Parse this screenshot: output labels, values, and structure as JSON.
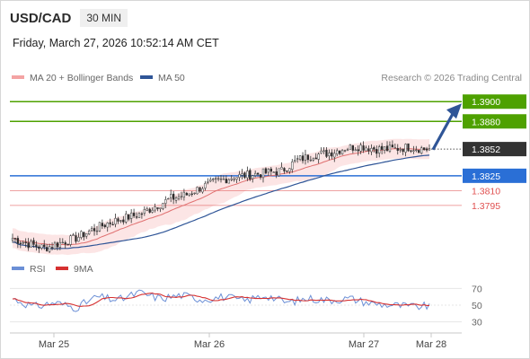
{
  "header": {
    "symbol": "USD/CAD",
    "timeframe": "30 MIN"
  },
  "datetime": "Friday, March 27, 2026 10:52:14 AM CET",
  "source": "Research © 2026 Trading Central",
  "colors": {
    "bull": "#ffffff",
    "bear": "#2b2b2b",
    "ma50": "#2f5597",
    "ma20": "#e07070",
    "band_fill": "#fbdcdc",
    "green": "#4ea100",
    "blue": "#2a6fd6",
    "red": "#e05050",
    "rsi": "#6b8fd6",
    "rsi_ma": "#d63030",
    "arrow": "#2f5597"
  },
  "chart_data": [
    {
      "type": "candlestick",
      "instrument": "USD/CAD",
      "interval": "30 MIN",
      "legend": [
        "MA 20 + Bollinger Bands",
        "MA 50"
      ],
      "x_ticks": [
        "Mar 25",
        "Mar 26",
        "Mar 27",
        "Mar 28"
      ],
      "ylim": [
        1.3745,
        1.3912
      ],
      "price_anchors": [
        [
          0,
          1.3762
        ],
        [
          6,
          1.3756
        ],
        [
          12,
          1.3752
        ],
        [
          18,
          1.3757
        ],
        [
          24,
          1.3762
        ],
        [
          30,
          1.377
        ],
        [
          36,
          1.3777
        ],
        [
          42,
          1.3782
        ],
        [
          48,
          1.3786
        ],
        [
          54,
          1.3794
        ],
        [
          60,
          1.3802
        ],
        [
          66,
          1.3806
        ],
        [
          72,
          1.3814
        ],
        [
          78,
          1.382
        ],
        [
          84,
          1.3824
        ],
        [
          90,
          1.3826
        ],
        [
          96,
          1.3828
        ],
        [
          102,
          1.383
        ],
        [
          108,
          1.3841
        ],
        [
          114,
          1.3846
        ],
        [
          120,
          1.3848
        ],
        [
          126,
          1.3853
        ],
        [
          132,
          1.3855
        ],
        [
          138,
          1.3852
        ],
        [
          144,
          1.3852
        ],
        [
          150,
          1.3854
        ],
        [
          156,
          1.3852
        ],
        [
          158,
          1.3852
        ]
      ],
      "last_price": "1.3852",
      "levels": [
        {
          "value": 1.39,
          "label": "1.3900",
          "role": "target"
        },
        {
          "value": 1.388,
          "label": "1.3880",
          "role": "target"
        },
        {
          "value": 1.3825,
          "label": "1.3825",
          "role": "pivot"
        },
        {
          "value": 1.381,
          "label": "1.3810",
          "role": "support"
        },
        {
          "value": 1.3795,
          "label": "1.3795",
          "role": "support"
        }
      ]
    },
    {
      "type": "line",
      "legend": [
        "RSI",
        "9MA"
      ],
      "y_ticks": [
        "70",
        "50",
        "30"
      ],
      "ylim": [
        22,
        78
      ],
      "rsi_anchors": [
        [
          0,
          58
        ],
        [
          8,
          48
        ],
        [
          16,
          53
        ],
        [
          24,
          47
        ],
        [
          32,
          60
        ],
        [
          40,
          56
        ],
        [
          48,
          65
        ],
        [
          56,
          58
        ],
        [
          64,
          62
        ],
        [
          72,
          57
        ],
        [
          80,
          60
        ],
        [
          88,
          55
        ],
        [
          96,
          62
        ],
        [
          104,
          53
        ],
        [
          112,
          58
        ],
        [
          120,
          56
        ],
        [
          128,
          58
        ],
        [
          136,
          52
        ],
        [
          144,
          50
        ],
        [
          152,
          48
        ],
        [
          158,
          49
        ]
      ]
    }
  ]
}
